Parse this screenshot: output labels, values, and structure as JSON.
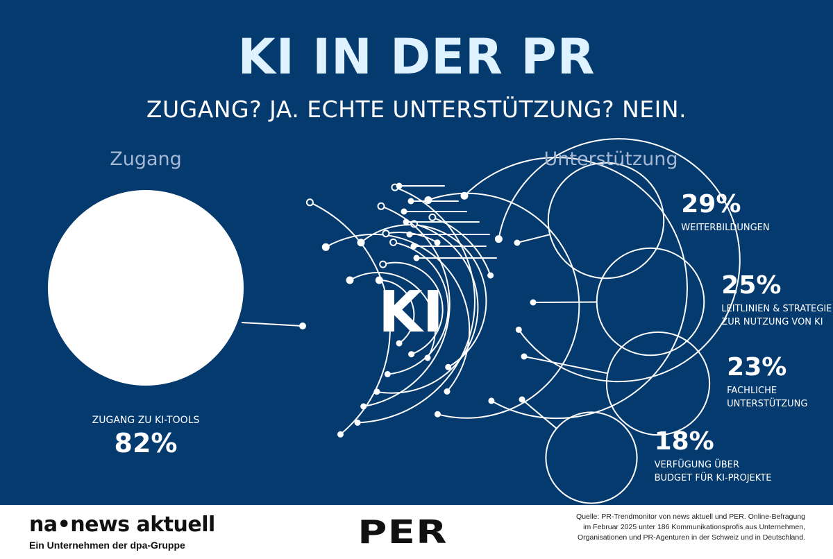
{
  "header": {
    "title": "KI IN DER PR",
    "subtitle": "ZUGANG? JA. ECHTE UNTERSTÜTZUNG? NEIN."
  },
  "sections": {
    "left_label": "Zugang",
    "right_label": "Unterstützung"
  },
  "center_label": "KI",
  "colors": {
    "background": "#053a6f",
    "circle_fill": "#ffffff",
    "line": "#ffffff",
    "title": "#dff2ff",
    "section_label": "#a6b8d2"
  },
  "chart_data": {
    "type": "bubble",
    "unit": "%",
    "access": {
      "category": "ZUGANG ZU KI-TOOLS",
      "value": 82,
      "value_label": "82%",
      "filled": true
    },
    "support": [
      {
        "category": "WEITERBILDUNGEN",
        "category_lines": [
          "WEITERBILDUNGEN"
        ],
        "value": 29,
        "value_label": "29%",
        "filled": false
      },
      {
        "category": "LEITLINIEN & STRATEGIE ZUR NUTZUNG VON KI",
        "category_lines": [
          "LEITLINIEN & STRATEGIE",
          "ZUR NUTZUNG VON KI"
        ],
        "value": 25,
        "value_label": "25%",
        "filled": false
      },
      {
        "category": "FACHLICHE UNTERSTÜTZUNG",
        "category_lines": [
          "FACHLICHE",
          "UNTERSTÜTZUNG"
        ],
        "value": 23,
        "value_label": "23%",
        "filled": false
      },
      {
        "category": "VERFÜGUNG ÜBER BUDGET FÜR KI-PROJEKTE",
        "category_lines": [
          "VERFÜGUNG ÜBER",
          "BUDGET FÜR KI-PROJEKTE"
        ],
        "value": 18,
        "value_label": "18%",
        "filled": false
      }
    ]
  },
  "footer": {
    "brand_name": "na•news aktuell",
    "brand_subline": "Ein Unternehmen der dpa-Gruppe",
    "partner_logo": "PER",
    "source": "Quelle: PR-Trendmonitor von news aktuell und PER. Online-Befragung im Februar 2025 unter 186 Kommunikationsprofis aus Unternehmen, Organisationen und PR-Agenturen in der Schweiz und in Deutschland."
  },
  "icons": [
    "circuit-arc-graphic"
  ]
}
